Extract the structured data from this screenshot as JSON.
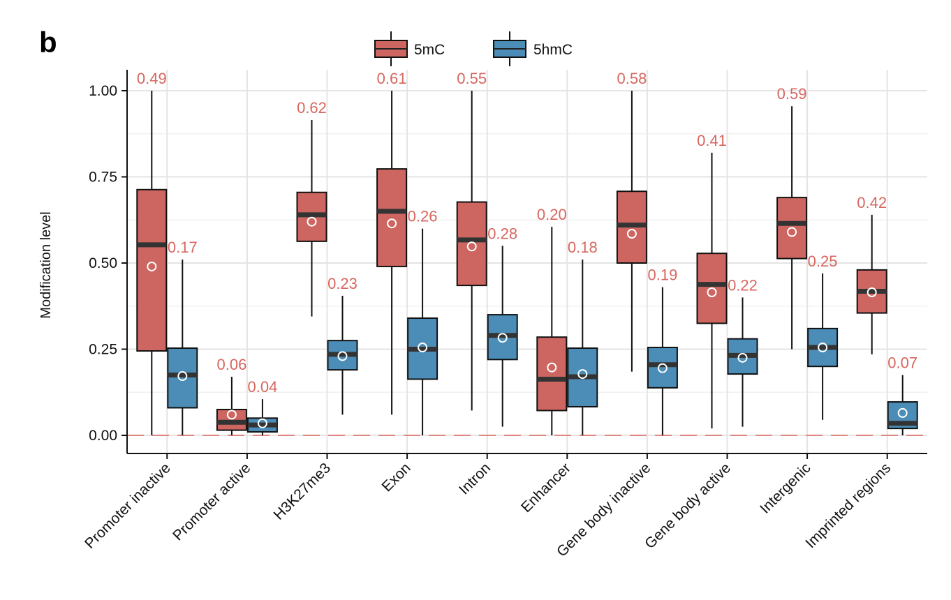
{
  "panel_letter": "b",
  "chart_data": {
    "type": "box",
    "ylabel": "Modification level",
    "ylim": [
      -0.05,
      1.05
    ],
    "yticks": [
      0,
      0.25,
      0.5,
      0.75,
      1.0
    ],
    "ytick_labels": [
      "0.00",
      "0.25",
      "0.50",
      "0.75",
      "1.00"
    ],
    "grid": true,
    "reference_line": 0.0,
    "legend_position": "top-center",
    "categories": [
      "Promoter inactive",
      "Promoter active",
      "H3K27me3",
      "Exon",
      "Intron",
      "Enhancer",
      "Gene body inactive",
      "Gene body active",
      "Intergenic",
      "Imprinted regions"
    ],
    "series": [
      {
        "name": "5mC",
        "color": "#cd6661",
        "boxes": [
          {
            "min": 0.0,
            "q1": 0.245,
            "median": 0.553,
            "q3": 0.713,
            "max": 1.0,
            "mean": 0.49,
            "label": "0.49"
          },
          {
            "min": 0.0,
            "q1": 0.015,
            "median": 0.038,
            "q3": 0.075,
            "max": 0.17,
            "mean": 0.06,
            "label": "0.06"
          },
          {
            "min": 0.345,
            "q1": 0.563,
            "median": 0.64,
            "q3": 0.705,
            "max": 0.915,
            "mean": 0.62,
            "label": "0.62"
          },
          {
            "min": 0.06,
            "q1": 0.49,
            "median": 0.65,
            "q3": 0.773,
            "max": 1.0,
            "mean": 0.615,
            "label": "0.61"
          },
          {
            "min": 0.072,
            "q1": 0.435,
            "median": 0.567,
            "q3": 0.677,
            "max": 1.0,
            "mean": 0.548,
            "label": "0.55"
          },
          {
            "min": 0.0,
            "q1": 0.072,
            "median": 0.163,
            "q3": 0.285,
            "max": 0.605,
            "mean": 0.197,
            "label": "0.20"
          },
          {
            "min": 0.185,
            "q1": 0.5,
            "median": 0.61,
            "q3": 0.708,
            "max": 1.0,
            "mean": 0.585,
            "label": "0.58"
          },
          {
            "min": 0.02,
            "q1": 0.325,
            "median": 0.438,
            "q3": 0.528,
            "max": 0.82,
            "mean": 0.415,
            "label": "0.41"
          },
          {
            "min": 0.25,
            "q1": 0.513,
            "median": 0.615,
            "q3": 0.69,
            "max": 0.955,
            "mean": 0.59,
            "label": "0.59"
          },
          {
            "min": 0.235,
            "q1": 0.355,
            "median": 0.418,
            "q3": 0.48,
            "max": 0.64,
            "mean": 0.415,
            "label": "0.42"
          }
        ]
      },
      {
        "name": "5hmC",
        "color": "#4b8db6",
        "boxes": [
          {
            "min": 0.0,
            "q1": 0.08,
            "median": 0.175,
            "q3": 0.253,
            "max": 0.51,
            "mean": 0.172,
            "label": "0.17"
          },
          {
            "min": 0.0,
            "q1": 0.01,
            "median": 0.03,
            "q3": 0.05,
            "max": 0.105,
            "mean": 0.035,
            "label": "0.04"
          },
          {
            "min": 0.06,
            "q1": 0.19,
            "median": 0.235,
            "q3": 0.275,
            "max": 0.405,
            "mean": 0.23,
            "label": "0.23"
          },
          {
            "min": 0.0,
            "q1": 0.163,
            "median": 0.25,
            "q3": 0.34,
            "max": 0.6,
            "mean": 0.255,
            "label": "0.26"
          },
          {
            "min": 0.025,
            "q1": 0.22,
            "median": 0.29,
            "q3": 0.35,
            "max": 0.55,
            "mean": 0.283,
            "label": "0.28"
          },
          {
            "min": 0.0,
            "q1": 0.083,
            "median": 0.17,
            "q3": 0.253,
            "max": 0.51,
            "mean": 0.178,
            "label": "0.18"
          },
          {
            "min": 0.0,
            "q1": 0.138,
            "median": 0.205,
            "q3": 0.255,
            "max": 0.43,
            "mean": 0.195,
            "label": "0.19"
          },
          {
            "min": 0.025,
            "q1": 0.178,
            "median": 0.232,
            "q3": 0.28,
            "max": 0.4,
            "mean": 0.225,
            "label": "0.22"
          },
          {
            "min": 0.045,
            "q1": 0.2,
            "median": 0.255,
            "q3": 0.31,
            "max": 0.47,
            "mean": 0.255,
            "label": "0.25"
          },
          {
            "min": 0.0,
            "q1": 0.02,
            "median": 0.035,
            "q3": 0.097,
            "max": 0.175,
            "mean": 0.065,
            "label": "0.07"
          }
        ]
      }
    ]
  }
}
